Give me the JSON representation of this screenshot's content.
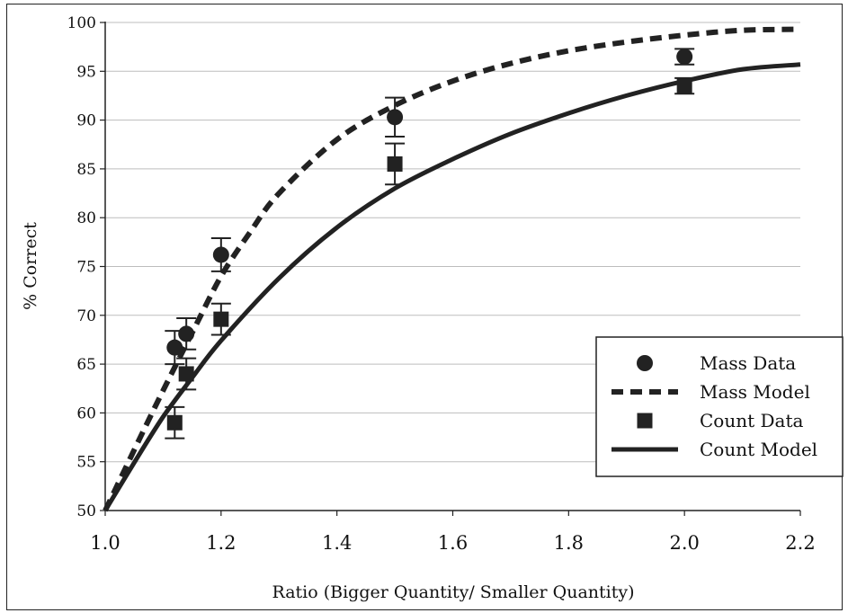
{
  "chart_data": {
    "type": "scatter",
    "xlabel": "Ratio (Bigger Quantity/ Smaller Quantity)",
    "ylabel": "% Correct",
    "xlim": [
      1.0,
      2.2
    ],
    "ylim": [
      50,
      100
    ],
    "x_ticks": [
      1.0,
      1.2,
      1.4,
      1.6,
      1.8,
      2.0,
      2.2
    ],
    "x_tick_labels": [
      "1.0",
      "1.2",
      "1.4",
      "1.6",
      "1.8",
      "2.0",
      "2.2"
    ],
    "y_ticks": [
      50,
      55,
      60,
      65,
      70,
      75,
      80,
      85,
      90,
      95,
      100
    ],
    "y_tick_labels": [
      "50",
      "55",
      "60",
      "65",
      "70",
      "75",
      "80",
      "85",
      "90",
      "95",
      "100"
    ],
    "grid": "horizontal",
    "legend_position": "right",
    "series": [
      {
        "name": "Mass Data",
        "kind": "points",
        "marker": "circle",
        "color": "#222222",
        "points": [
          {
            "x": 1.12,
            "y": 66.7,
            "err": 1.7
          },
          {
            "x": 1.14,
            "y": 68.1,
            "err": 1.6
          },
          {
            "x": 1.2,
            "y": 76.2,
            "err": 1.7
          },
          {
            "x": 1.5,
            "y": 90.3,
            "err": 2.0
          },
          {
            "x": 2.0,
            "y": 96.5,
            "err": 0.8
          }
        ]
      },
      {
        "name": "Mass Model",
        "kind": "line",
        "dash": "dashed",
        "color": "#222222",
        "points": [
          {
            "x": 1.0,
            "y": 50.0
          },
          {
            "x": 1.05,
            "y": 56.2
          },
          {
            "x": 1.1,
            "y": 62.3
          },
          {
            "x": 1.15,
            "y": 68.2
          },
          {
            "x": 1.2,
            "y": 74.0
          },
          {
            "x": 1.25,
            "y": 78.5
          },
          {
            "x": 1.3,
            "y": 82.5
          },
          {
            "x": 1.4,
            "y": 88.0
          },
          {
            "x": 1.5,
            "y": 91.5
          },
          {
            "x": 1.6,
            "y": 94.0
          },
          {
            "x": 1.7,
            "y": 95.8
          },
          {
            "x": 1.8,
            "y": 97.1
          },
          {
            "x": 1.9,
            "y": 98.0
          },
          {
            "x": 2.0,
            "y": 98.7
          },
          {
            "x": 2.1,
            "y": 99.2
          },
          {
            "x": 2.2,
            "y": 99.3
          }
        ]
      },
      {
        "name": "Count Data",
        "kind": "points",
        "marker": "square",
        "color": "#222222",
        "points": [
          {
            "x": 1.12,
            "y": 59.0,
            "err": 1.6
          },
          {
            "x": 1.14,
            "y": 64.0,
            "err": 1.6
          },
          {
            "x": 1.2,
            "y": 69.6,
            "err": 1.6
          },
          {
            "x": 1.5,
            "y": 85.5,
            "err": 2.1
          },
          {
            "x": 2.0,
            "y": 93.5,
            "err": 0.8
          }
        ]
      },
      {
        "name": "Count Model",
        "kind": "line",
        "dash": "solid",
        "color": "#222222",
        "points": [
          {
            "x": 1.0,
            "y": 50.0
          },
          {
            "x": 1.05,
            "y": 54.9
          },
          {
            "x": 1.1,
            "y": 59.6
          },
          {
            "x": 1.15,
            "y": 63.6
          },
          {
            "x": 1.2,
            "y": 67.4
          },
          {
            "x": 1.3,
            "y": 73.8
          },
          {
            "x": 1.4,
            "y": 79.0
          },
          {
            "x": 1.5,
            "y": 83.0
          },
          {
            "x": 1.6,
            "y": 86.0
          },
          {
            "x": 1.7,
            "y": 88.6
          },
          {
            "x": 1.8,
            "y": 90.7
          },
          {
            "x": 1.9,
            "y": 92.5
          },
          {
            "x": 2.0,
            "y": 94.0
          },
          {
            "x": 2.1,
            "y": 95.2
          },
          {
            "x": 2.2,
            "y": 95.7
          }
        ]
      }
    ]
  }
}
